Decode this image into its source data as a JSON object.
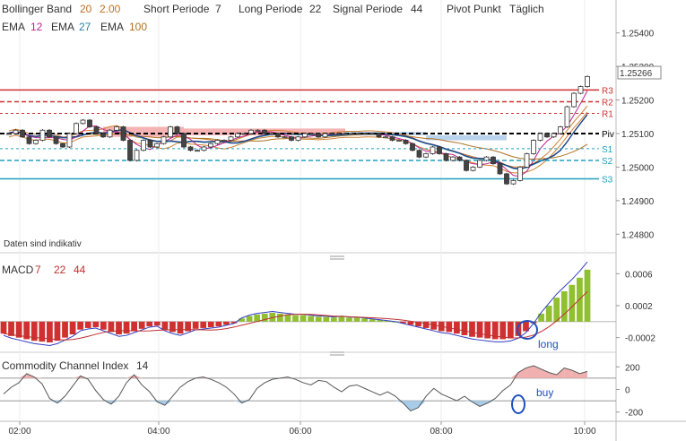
{
  "header": {
    "bollinger_label": "Bollinger Band",
    "bollinger_p1": "20",
    "bollinger_p2": "2.00",
    "short_label": "Short Periode",
    "short_value": "7",
    "long_label": "Long Periode",
    "long_value": "22",
    "signal_label": "Signal Periode",
    "signal_value": "44",
    "pivot_label": "Pivot Punkt",
    "pivot_value": "Täglich",
    "ema_label": "EMA",
    "ema_values": [
      "12",
      "27",
      "100"
    ]
  },
  "colors": {
    "ema12": "#c0208f",
    "ema27": "#2a7f9f",
    "ema100": "#b07020",
    "bollinger": "#d08030",
    "resistance": "#d03030",
    "support": "#20a0c0",
    "pivot": "#000000",
    "macd_pos": "#90c030",
    "macd_neg": "#d03030",
    "cci_line": "#555555",
    "annotation": "#2050c0"
  },
  "note": "Daten sind indikativ",
  "price_badge": "1.25266",
  "pivot_labels": [
    "R3",
    "R2",
    "R1",
    "Piv",
    "S1",
    "S2",
    "S3"
  ],
  "annotations": {
    "long": "long",
    "buy": "buy"
  },
  "panels": {
    "macd_title": "MACD",
    "macd_params": [
      "7",
      "22",
      "44"
    ],
    "cci_title": "Commodity Channel Index",
    "cci_param": "14"
  },
  "chart_data": [
    {
      "type": "candlestick",
      "xlabel": "",
      "ylabel": "",
      "x_ticks": [
        "02:00",
        "04:00",
        "06:00",
        "08:00",
        "10:00"
      ],
      "y_ticks": [
        "1.25400",
        "1.25300",
        "1.25200",
        "1.25100",
        "1.25000",
        "1.24900",
        "1.24800"
      ],
      "ylim": [
        1.2475,
        1.2545
      ],
      "levels": {
        "R3": 1.2523,
        "R2": 1.25195,
        "R1": 1.2516,
        "Piv": 1.251,
        "S1": 1.25055,
        "S2": 1.2502,
        "S3": 1.24965
      },
      "last_price": 1.25266,
      "close": [
        1.251,
        1.2511,
        1.2509,
        1.2507,
        1.2508,
        1.2511,
        1.2509,
        1.2507,
        1.2506,
        1.251,
        1.2513,
        1.2514,
        1.2512,
        1.251,
        1.2509,
        1.2511,
        1.2512,
        1.2508,
        1.2502,
        1.2505,
        1.2508,
        1.2506,
        1.2507,
        1.2509,
        1.2512,
        1.251,
        1.2506,
        1.2505,
        1.2505,
        1.2506,
        1.2507,
        1.2508,
        1.2508,
        1.2509,
        1.251,
        1.251,
        1.2511,
        1.2511,
        1.251,
        1.251,
        1.2509,
        1.2509,
        1.2508,
        1.2509,
        1.251,
        1.251,
        1.2509,
        1.251,
        1.251,
        1.251,
        1.251,
        1.251,
        1.251,
        1.251,
        1.251,
        1.2509,
        1.2509,
        1.2508,
        1.2508,
        1.2507,
        1.2505,
        1.2503,
        1.2504,
        1.2506,
        1.2504,
        1.2502,
        1.2503,
        1.2502,
        1.2499,
        1.25,
        1.2502,
        1.2503,
        1.2501,
        1.2498,
        1.2495,
        1.2496,
        1.25,
        1.2504,
        1.2508,
        1.251,
        1.2509,
        1.251,
        1.2512,
        1.2518,
        1.2522,
        1.2524,
        1.2527
      ]
    },
    {
      "type": "bar",
      "name": "MACD",
      "y_ticks": [
        "0.0006",
        "0.0002",
        "-0.0002"
      ],
      "ylim": [
        -0.00035,
        0.00075
      ],
      "values": [
        -0.00015,
        -0.00018,
        -0.0002,
        -0.00022,
        -0.00024,
        -0.00025,
        -0.00026,
        -0.00024,
        -0.0002,
        -0.00016,
        -0.0001,
        -8e-05,
        -7e-05,
        -0.0001,
        -0.00013,
        -0.00016,
        -0.00015,
        -0.00012,
        -9e-05,
        -6e-05,
        -5e-05,
        -0.0001,
        -0.00013,
        -0.00015,
        -0.00012,
        -9e-05,
        -8e-05,
        -7e-05,
        -6e-05,
        -4e-05,
        -2e-05,
        4e-05,
        7e-05,
        9e-05,
        0.0001,
        0.00011,
        0.0001,
        9e-05,
        8e-05,
        8e-05,
        7e-05,
        6e-05,
        6e-05,
        5e-05,
        6e-05,
        5e-05,
        5e-05,
        4e-05,
        3e-05,
        2e-05,
        1e-05,
        0,
        -2e-05,
        -4e-05,
        -6e-05,
        -8e-05,
        -0.0001,
        -0.00012,
        -0.00013,
        -0.00015,
        -0.00017,
        -0.00019,
        -0.0002,
        -0.00021,
        -0.00022,
        -0.00022,
        -0.00021,
        -0.00018,
        -0.00012,
        -2e-05,
        0.0001,
        0.0002,
        0.0003,
        0.00038,
        0.00046,
        0.00055,
        0.00065
      ]
    },
    {
      "type": "line",
      "name": "Commodity Channel Index",
      "y_ticks": [
        "200",
        "0",
        "-200"
      ],
      "ylim": [
        -250,
        250
      ],
      "values": [
        -40,
        20,
        60,
        140,
        110,
        50,
        -80,
        -120,
        -60,
        30,
        120,
        90,
        -10,
        -90,
        -130,
        -60,
        60,
        130,
        40,
        -20,
        -110,
        -140,
        -60,
        20,
        70,
        100,
        110,
        90,
        60,
        20,
        -40,
        -120,
        -90,
        10,
        60,
        90,
        100,
        110,
        90,
        60,
        40,
        80,
        70,
        20,
        -20,
        30,
        40,
        10,
        -20,
        -50,
        -20,
        -60,
        -120,
        -190,
        -160,
        -60,
        10,
        -40,
        -70,
        -100,
        -60,
        -110,
        -150,
        -120,
        -80,
        -10,
        40,
        150,
        190,
        210,
        180,
        150,
        130,
        190,
        170,
        140,
        160
      ]
    }
  ]
}
